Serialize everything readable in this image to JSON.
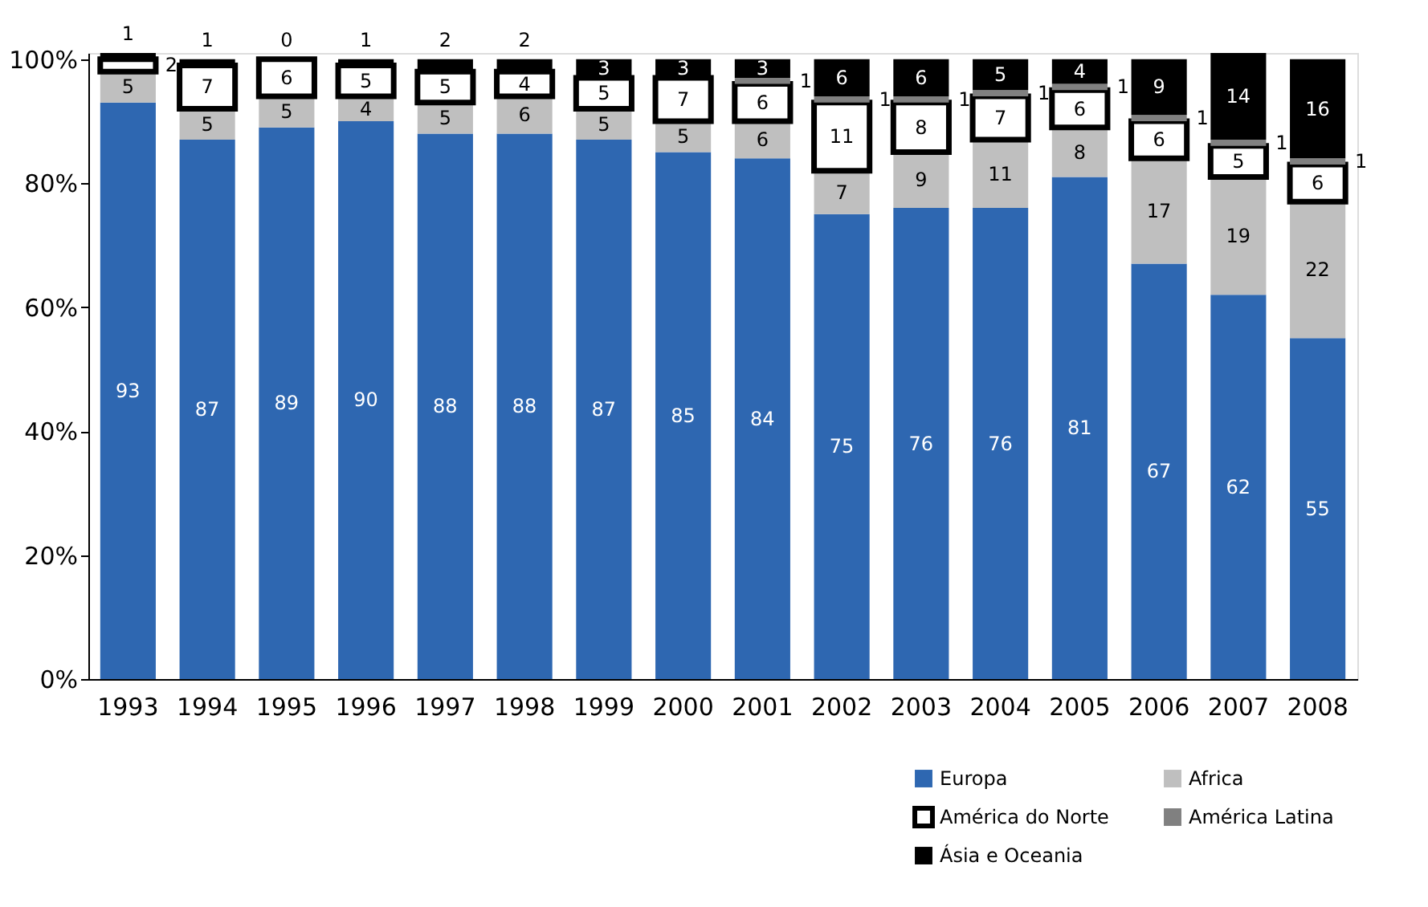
{
  "chart_data": {
    "type": "bar",
    "stacked": true,
    "categories": [
      "1993",
      "1994",
      "1995",
      "1996",
      "1997",
      "1998",
      "1999",
      "2000",
      "2001",
      "2002",
      "2003",
      "2004",
      "2005",
      "2006",
      "2007",
      "2008"
    ],
    "series": [
      {
        "name": "Europa",
        "color": "#2e67b1",
        "values": [
          93,
          87,
          89,
          90,
          88,
          88,
          87,
          85,
          84,
          75,
          76,
          76,
          81,
          67,
          62,
          55
        ],
        "value_labels": [
          "93",
          "87",
          "89",
          "90",
          "88",
          "88",
          "87",
          "85",
          "84",
          "75",
          "76",
          "76",
          "81",
          "67",
          "62",
          "55"
        ]
      },
      {
        "name": "Africa",
        "color": "#bfbfbf",
        "values": [
          5,
          5,
          5,
          4,
          5,
          6,
          5,
          5,
          6,
          7,
          9,
          11,
          8,
          17,
          19,
          22
        ],
        "value_labels": [
          "5",
          "5",
          "5",
          "4",
          "5",
          "6",
          "5",
          "5",
          "6",
          "7",
          "9",
          "11",
          "8",
          "17",
          "19",
          "22"
        ]
      },
      {
        "name": "América do Norte",
        "color": "#ffffff",
        "values": [
          2,
          7,
          6,
          5,
          5,
          4,
          5,
          7,
          6,
          11,
          8,
          7,
          6,
          6,
          5,
          6
        ],
        "value_labels": [
          "2",
          "7",
          "6",
          "5",
          "5",
          "4",
          "5",
          "7",
          "6",
          "11",
          "8",
          "7",
          "6",
          "6",
          "5",
          "6"
        ]
      },
      {
        "name": "América Latina",
        "color": "#808080",
        "values": [
          0,
          0,
          0,
          0,
          0,
          0,
          0,
          0,
          1,
          1,
          1,
          1,
          1,
          1,
          1,
          1
        ],
        "value_labels": [
          null,
          null,
          null,
          null,
          null,
          null,
          null,
          null,
          "1",
          "1",
          "1",
          "1",
          "1",
          "1",
          "1",
          "1"
        ]
      },
      {
        "name": "Ásia e Oceania",
        "color": "#000000",
        "values": [
          1,
          1,
          0,
          1,
          2,
          2,
          3,
          3,
          3,
          6,
          6,
          5,
          4,
          9,
          14,
          16
        ],
        "value_labels": [
          "1",
          "1",
          "0",
          "1",
          "2",
          "2",
          "3",
          "3",
          "3",
          "6",
          "6",
          "5",
          "4",
          "9",
          "14",
          "16"
        ]
      }
    ],
    "ylim": [
      0,
      101
    ],
    "yticks": [
      {
        "value": 0,
        "label": "0%"
      },
      {
        "value": 20,
        "label": "20%"
      },
      {
        "value": 40,
        "label": "40%"
      },
      {
        "value": 60,
        "label": "60%"
      },
      {
        "value": 80,
        "label": "80%"
      },
      {
        "value": 100,
        "label": "100%"
      }
    ],
    "grid": false,
    "legend": "bottom right"
  }
}
